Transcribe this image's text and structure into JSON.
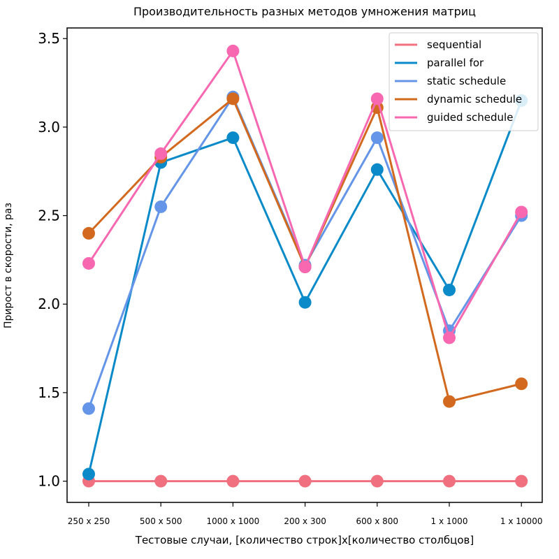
{
  "chart_data": {
    "type": "line",
    "title": "Производительность разных методов умножения матриц",
    "xlabel": "Тестовые случаи, [количество строк]x[количество столбцов]",
    "ylabel": "Прирост в скорости, раз",
    "categories": [
      "250 x 250",
      "500 x 500",
      "1000 x 1000",
      "200 x 300",
      "600 x 800",
      "1 x 1000",
      "1 x 10000"
    ],
    "ylim": [
      0.88,
      3.56
    ],
    "yticks": [
      "1.0",
      "1.5",
      "2.0",
      "2.5",
      "3.0",
      "3.5"
    ],
    "grid": false,
    "legend_position": "top-right",
    "series": [
      {
        "name": "sequential",
        "color": "#f0707f",
        "values": [
          1.0,
          1.0,
          1.0,
          1.0,
          1.0,
          1.0,
          1.0
        ]
      },
      {
        "name": "parallel for",
        "color": "#0a8ac8",
        "values": [
          1.04,
          2.8,
          2.94,
          2.01,
          2.76,
          2.08,
          3.15
        ]
      },
      {
        "name": "static schedule",
        "color": "#6495e8",
        "values": [
          1.41,
          2.55,
          3.17,
          2.22,
          2.94,
          1.85,
          2.5
        ]
      },
      {
        "name": "dynamic schedule",
        "color": "#d2691e",
        "values": [
          2.4,
          2.83,
          3.16,
          2.21,
          3.11,
          1.45,
          1.55
        ]
      },
      {
        "name": "guided schedule",
        "color": "#f768b0",
        "values": [
          2.23,
          2.85,
          3.43,
          2.21,
          3.16,
          1.81,
          2.52
        ]
      }
    ]
  }
}
